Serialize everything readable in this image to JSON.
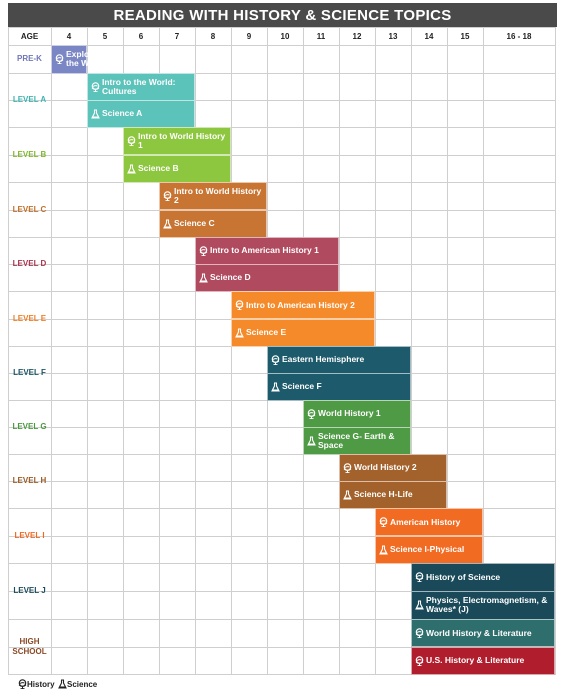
{
  "title": "READING WITH HISTORY & SCIENCE TOPICS",
  "header": {
    "age_label": "AGE",
    "ages": [
      4,
      5,
      6,
      7,
      8,
      9,
      10,
      11,
      12,
      13,
      14,
      15,
      "16 - 18"
    ]
  },
  "rows": [
    {
      "level": "PRE-K",
      "courses": [
        "Exploring the World"
      ]
    },
    {
      "level": "LEVEL A",
      "courses": [
        "Intro to the World: Cultures",
        "Science A"
      ]
    },
    {
      "level": "LEVEL B",
      "courses": [
        "Intro to World History 1",
        "Science B"
      ]
    },
    {
      "level": "LEVEL C",
      "courses": [
        "Intro to World History 2",
        "Science C"
      ]
    },
    {
      "level": "LEVEL D",
      "courses": [
        "Intro to American History 1",
        "Science D"
      ]
    },
    {
      "level": "LEVEL E",
      "courses": [
        "Intro to American History 2",
        "Science E"
      ]
    },
    {
      "level": "LEVEL F",
      "courses": [
        "Eastern Hemisphere",
        "Science F"
      ]
    },
    {
      "level": "LEVEL G",
      "courses": [
        "World History 1",
        "Science G- Earth & Space"
      ]
    },
    {
      "level": "LEVEL H",
      "courses": [
        "World History 2",
        "Science H-Life"
      ]
    },
    {
      "level": "LEVEL I",
      "courses": [
        "American History",
        "Science I-Physical"
      ]
    },
    {
      "level": "LEVEL J",
      "courses": [
        "History of Science",
        "Physics, Electromagnetism, & Waves* (J)"
      ]
    },
    {
      "level": "HIGH SCHOOL",
      "courses": [
        "World History & Literature",
        "U.S. History & Literature"
      ]
    }
  ],
  "legend": [
    "History",
    "Science"
  ]
}
